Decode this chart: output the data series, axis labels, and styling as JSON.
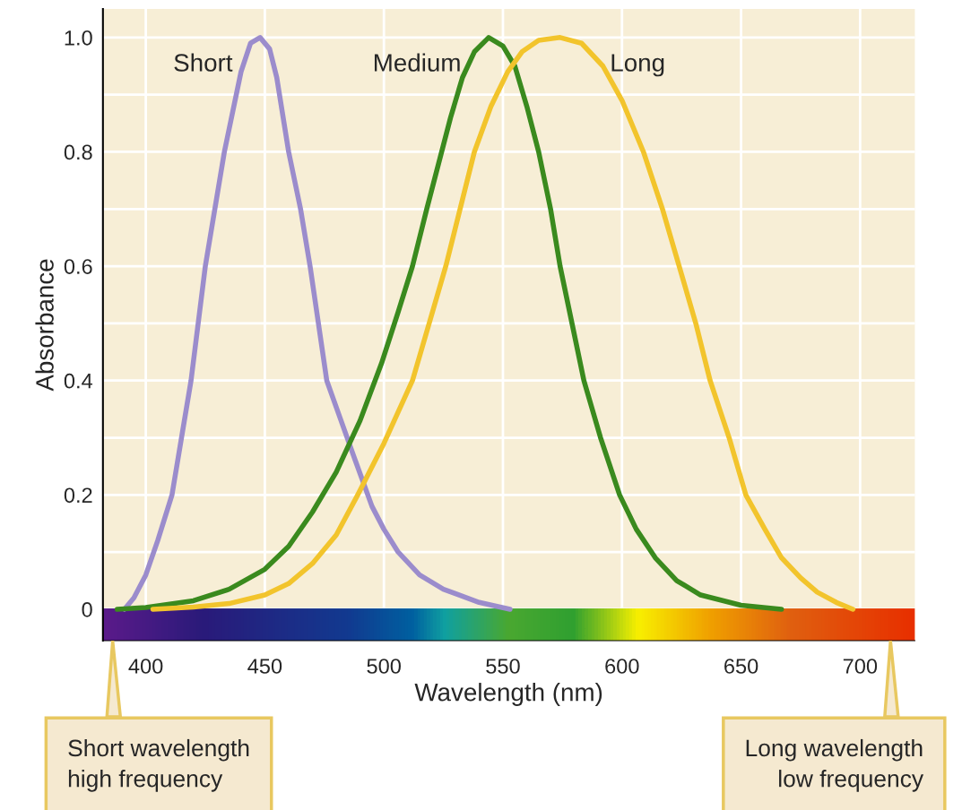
{
  "chart_data": {
    "type": "line",
    "xlabel": "Wavelength (nm)",
    "ylabel": "Absorbance",
    "xlim": [
      382,
      723
    ],
    "ylim": [
      -0.055,
      1.05
    ],
    "xticks": [
      400,
      450,
      500,
      550,
      600,
      650,
      700
    ],
    "yticks": [
      {
        "value": 0,
        "label": "0"
      },
      {
        "value": 0.1,
        "label": null
      },
      0.2,
      {
        "value": 0.3,
        "label": null
      },
      0.4,
      {
        "value": 0.5,
        "label": null
      },
      0.6,
      {
        "value": 0.7,
        "label": null
      },
      0.8,
      {
        "value": 0.9,
        "label": null
      },
      {
        "value": 1.0,
        "label": "1.0"
      }
    ],
    "grid": true,
    "line_style": "solid",
    "marker": "none",
    "series": [
      {
        "name": "Short",
        "color": "#9b8ccc",
        "x": [
          391,
          395,
          400,
          405,
          411,
          415,
          419,
          425,
          429,
          433,
          437,
          440,
          444,
          448,
          452,
          455,
          460,
          465,
          469,
          476,
          482,
          488,
          495,
          500,
          506,
          515,
          525,
          540,
          553
        ],
        "values": [
          0,
          0.02,
          0.06,
          0.12,
          0.2,
          0.3,
          0.4,
          0.6,
          0.7,
          0.8,
          0.88,
          0.94,
          0.99,
          1.0,
          0.98,
          0.93,
          0.8,
          0.7,
          0.6,
          0.4,
          0.33,
          0.26,
          0.18,
          0.14,
          0.1,
          0.06,
          0.035,
          0.012,
          0
        ]
      },
      {
        "name": "Medium",
        "color": "#3a8a1e",
        "x": [
          388,
          400,
          420,
          435,
          450,
          460,
          470,
          480,
          490,
          499,
          506,
          512,
          518,
          523,
          528,
          533,
          538,
          544,
          550,
          555,
          560,
          565,
          570,
          574,
          579,
          584,
          591,
          599,
          606,
          614,
          623,
          633,
          650,
          667
        ],
        "values": [
          0,
          0.003,
          0.015,
          0.035,
          0.07,
          0.11,
          0.17,
          0.24,
          0.33,
          0.43,
          0.52,
          0.6,
          0.7,
          0.78,
          0.86,
          0.93,
          0.975,
          1.0,
          0.985,
          0.95,
          0.88,
          0.8,
          0.7,
          0.6,
          0.5,
          0.4,
          0.3,
          0.2,
          0.14,
          0.09,
          0.05,
          0.025,
          0.007,
          0
        ]
      },
      {
        "name": "Long",
        "color": "#f2c42c",
        "x": [
          403,
          420,
          435,
          450,
          460,
          470,
          480,
          489,
          500,
          512,
          519,
          526,
          532,
          538,
          545,
          552,
          558,
          565,
          574,
          583,
          592,
          600,
          609,
          617,
          624,
          631,
          637,
          645,
          652,
          660,
          667,
          675,
          682,
          690,
          697
        ],
        "values": [
          0,
          0.004,
          0.01,
          0.025,
          0.045,
          0.08,
          0.13,
          0.2,
          0.29,
          0.4,
          0.5,
          0.6,
          0.7,
          0.8,
          0.88,
          0.94,
          0.975,
          0.995,
          1.0,
          0.99,
          0.95,
          0.89,
          0.8,
          0.7,
          0.6,
          0.5,
          0.4,
          0.3,
          0.2,
          0.14,
          0.09,
          0.055,
          0.03,
          0.012,
          0
        ]
      }
    ],
    "annotations": [
      "Short wavelength\nhigh frequency",
      "Long wavelength\nlow frequency"
    ]
  }
}
